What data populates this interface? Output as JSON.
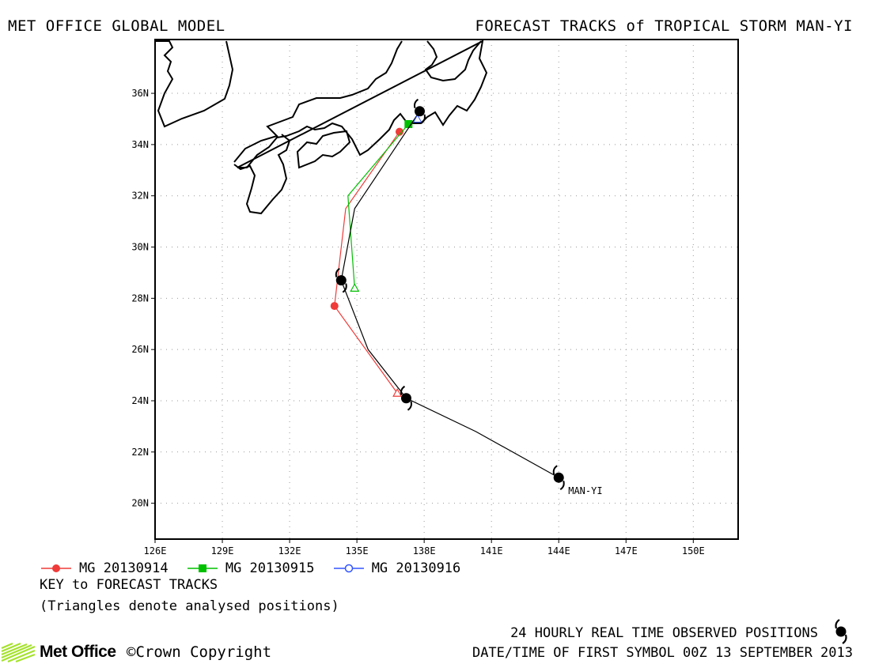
{
  "header": {
    "left_title": "MET OFFICE GLOBAL MODEL",
    "right_title": "FORECAST TRACKS of TROPICAL STORM MAN-YI"
  },
  "axes": {
    "lat_labels": [
      "20N",
      "22N",
      "24N",
      "26N",
      "28N",
      "30N",
      "32N",
      "34N",
      "36N"
    ],
    "lat_values": [
      20,
      22,
      24,
      26,
      28,
      30,
      32,
      34,
      36
    ],
    "lon_labels": [
      "126E",
      "129E",
      "132E",
      "135E",
      "138E",
      "141E",
      "144E",
      "147E",
      "150E"
    ],
    "lon_values": [
      126,
      129,
      132,
      135,
      138,
      141,
      144,
      147,
      150
    ],
    "lon_range": [
      126,
      152
    ],
    "lat_range": [
      18.6,
      38.1
    ],
    "grid": "dotted"
  },
  "storm": {
    "name": "MAN-YI",
    "observed_track": [
      [
        144.0,
        21.0
      ],
      [
        140.3,
        22.8
      ],
      [
        137.2,
        24.1
      ],
      [
        135.5,
        26.0
      ],
      [
        134.3,
        28.7
      ],
      [
        134.9,
        31.5
      ],
      [
        137.8,
        35.3
      ]
    ],
    "observed_symbols": [
      [
        144.0,
        21.0
      ],
      [
        137.2,
        24.1
      ],
      [
        134.3,
        28.7
      ],
      [
        137.8,
        35.3
      ]
    ]
  },
  "forecasts": [
    {
      "label": "MG 20130914",
      "color": "#ef3b39",
      "marker": "circle-filled",
      "track": [
        [
          134.0,
          27.7
        ],
        [
          134.5,
          31.5
        ],
        [
          136.9,
          34.5
        ]
      ],
      "analysed": [
        [
          136.8,
          24.3
        ]
      ],
      "analysed_to_first": true
    },
    {
      "label": "MG 20130915",
      "color": "#00c000",
      "marker": "square-filled",
      "track": [
        [
          134.9,
          28.4
        ],
        [
          134.6,
          32.0
        ],
        [
          137.3,
          34.8
        ]
      ],
      "analysed": [
        [
          134.9,
          28.4
        ]
      ],
      "analysed_to_first": false
    },
    {
      "label": "MG 20130916",
      "color": "#3355ff",
      "marker": "circle-open",
      "track": [],
      "analysed": [],
      "analysed_to_first": false
    }
  ],
  "legend": {
    "key_title": "KEY to FORECAST TRACKS",
    "key_note": "(Triangles denote analysed positions)"
  },
  "footer": {
    "observed_note": "24 HOURLY REAL TIME OBSERVED POSITIONS",
    "first_symbol": "DATE/TIME OF FIRST SYMBOL 00Z 13 SEPTEMBER 2013",
    "logo_text": "Met Office",
    "copyright": "©Crown Copyright"
  },
  "colors": {
    "observed_track": "#000000",
    "coastline": "#000000",
    "logo_green": "#a6e22e"
  },
  "icons": {
    "storm_symbol": "tropical-cyclone-icon",
    "logo": "met-office-logo-icon"
  }
}
